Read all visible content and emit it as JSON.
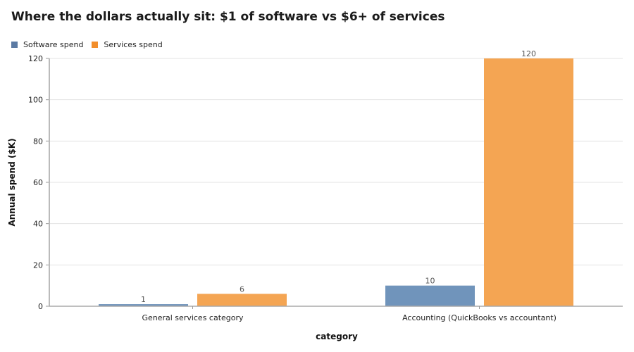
{
  "chart_data": {
    "type": "bar",
    "title": "Where the dollars actually sit: $1 of software vs $6+ of services",
    "xlabel": "category",
    "ylabel": "Annual spend ($K)",
    "categories": [
      "General services category",
      "Accounting (QuickBooks vs accountant)"
    ],
    "series": [
      {
        "name": "Software spend",
        "color": "#7094bb",
        "values": [
          1,
          10
        ]
      },
      {
        "name": "Services spend",
        "color": "#f4a553",
        "values": [
          6,
          120
        ]
      }
    ],
    "ylim": [
      0,
      120
    ],
    "yticks": [
      0,
      20,
      40,
      60,
      80,
      100,
      120
    ],
    "grid": true,
    "legend": "top-left",
    "legend_swatch_colors": [
      "#5b7aa3",
      "#f28e2b"
    ]
  }
}
